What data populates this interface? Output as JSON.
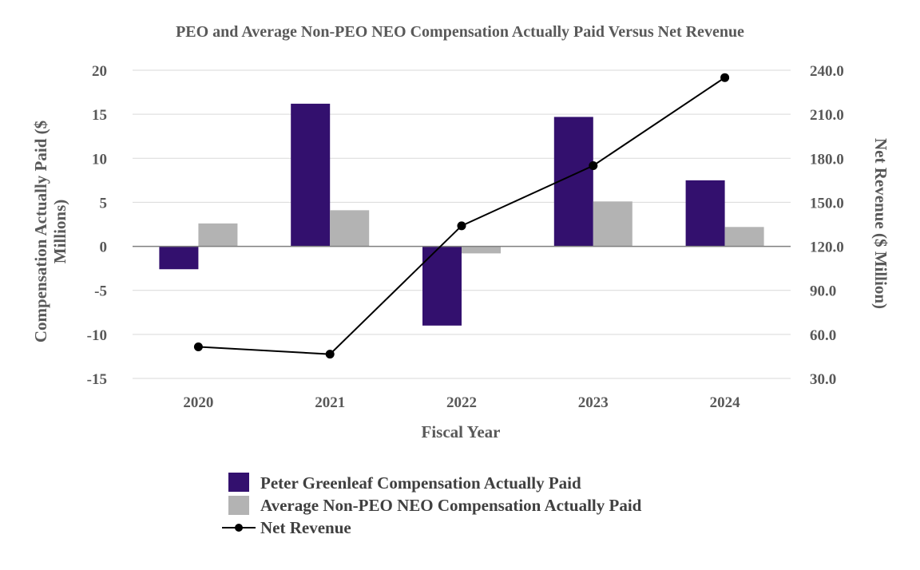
{
  "chart_data": {
    "type": "bar",
    "title": "PEO and Average Non-PEO NEO Compensation Actually Paid Versus Net Revenue",
    "xlabel": "Fiscal Year",
    "ylabel_lines": [
      "Compensation Actually Paid ($",
      "Millions)"
    ],
    "y2label": "Net Revenue ($ Million)",
    "categories": [
      "2020",
      "2021",
      "2022",
      "2023",
      "2024"
    ],
    "ylim": [
      -15,
      20
    ],
    "yticks": [
      20,
      15,
      10,
      5,
      0,
      -5,
      -10,
      -15
    ],
    "ytick_labels": [
      "20",
      "15",
      "10",
      "5",
      "0",
      "-5",
      "-10",
      "-15"
    ],
    "y2lim": [
      30,
      240
    ],
    "y2ticks": [
      240,
      210,
      180,
      150,
      120,
      90,
      60,
      30
    ],
    "y2tick_labels": [
      "240.0",
      "210.0",
      "180.0",
      "150.0",
      "120.0",
      "90.0",
      "60.0",
      "30.0"
    ],
    "grid": true,
    "legend_position": "bottom",
    "series": [
      {
        "name": "Peter Greenleaf Compensation Actually Paid",
        "type": "bar",
        "axis": "left",
        "color": "#33106e",
        "values": [
          -2.6,
          16.2,
          -9.0,
          14.7,
          7.5
        ]
      },
      {
        "name": "Average Non-PEO NEO Compensation Actually Paid",
        "type": "bar",
        "axis": "left",
        "color": "#b3b3b3",
        "values": [
          2.6,
          4.1,
          -0.8,
          5.1,
          2.2
        ]
      },
      {
        "name": "Net Revenue",
        "type": "line",
        "axis": "right",
        "color": "#000000",
        "values": [
          51.5,
          46.5,
          134.0,
          175.0,
          235.0
        ]
      }
    ]
  }
}
